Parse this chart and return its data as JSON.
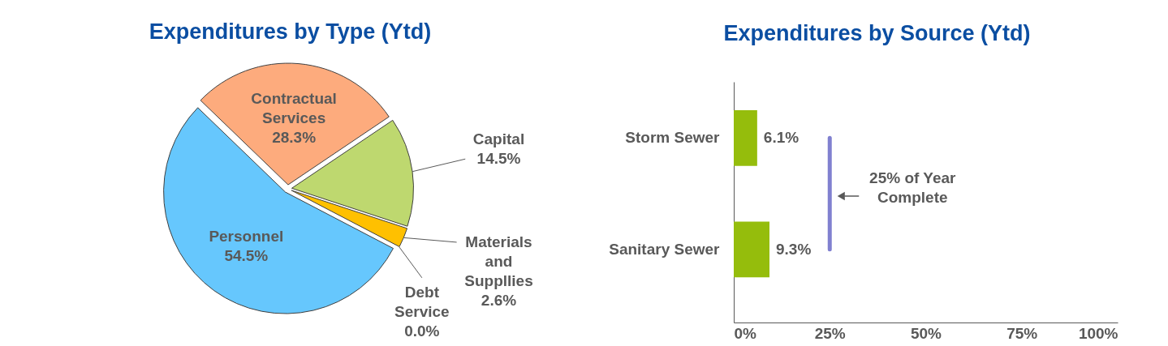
{
  "chart_data": [
    {
      "type": "pie",
      "title": "Expenditures by Type (Ytd)",
      "categories": [
        "Contractual Services",
        "Capital",
        "Materials and Suppllies",
        "Debt Service",
        "Personnel"
      ],
      "values": [
        28.3,
        14.5,
        2.6,
        0.0,
        54.5
      ],
      "colors": [
        "#fdab7d",
        "#bed86f",
        "#ffc000",
        "#a5a5a5",
        "#66c7fd"
      ],
      "value_labels": [
        "28.3%",
        "14.5%",
        "2.6%",
        "0.0%",
        "54.5%"
      ]
    },
    {
      "type": "bar",
      "orientation": "horizontal",
      "title": "Expenditures by Source (Ytd)",
      "categories": [
        "Storm Sewer",
        "Sanitary Sewer"
      ],
      "values": [
        6.1,
        9.3
      ],
      "color": "#95bd0c",
      "value_labels": [
        "6.1%",
        "9.3%"
      ],
      "xlim": [
        0,
        100
      ],
      "xticks": [
        {
          "value": 0,
          "label": "0%"
        },
        {
          "value": 25,
          "label": "25%"
        },
        {
          "value": 50,
          "label": "50%"
        },
        {
          "value": 75,
          "label": "75%"
        },
        {
          "value": 100,
          "label": "100%"
        }
      ],
      "ref_lines": [
        {
          "axis": "x",
          "value": 25,
          "label": "25% of Year Complete",
          "color": "#8080d0"
        }
      ]
    }
  ]
}
